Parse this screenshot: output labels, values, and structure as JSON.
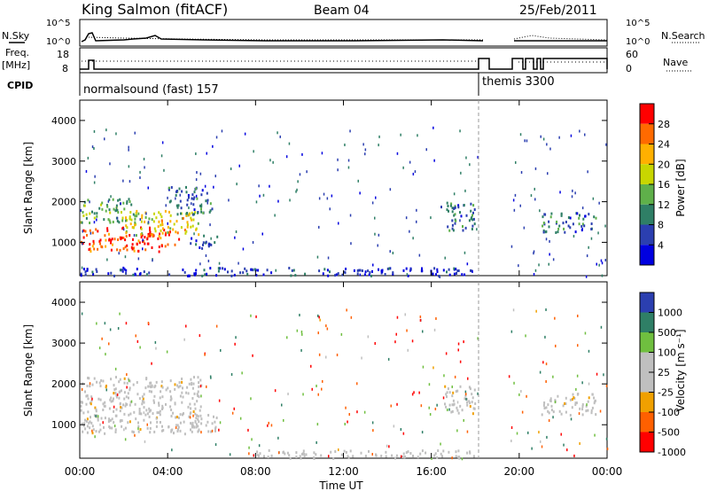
{
  "header": {
    "station": "King Salmon (fitACF)",
    "beam": "Beam 04",
    "date": "25/Feb/2011"
  },
  "status_panel": {
    "nsky_label": "N.Sky",
    "nsearch_label": "N.Search",
    "freq_label_line1": "Freq.",
    "freq_label_line2": "[MHz]",
    "nave_label": "Nave",
    "cpid_label": "CPID",
    "noise_ticks": [
      "10^5",
      "10^0"
    ],
    "freq_ticks": [
      "18",
      "8"
    ],
    "nave_ticks": [
      "60",
      "0"
    ],
    "cpid_segments": [
      {
        "name": "normalsound (fast) 157",
        "start_hour": 0,
        "end_hour": 18
      },
      {
        "name": "themis 3300",
        "start_hour": 18,
        "end_hour": 24
      }
    ]
  },
  "axes": {
    "x_ticks": [
      "00:00",
      "04:00",
      "08:00",
      "12:00",
      "16:00",
      "20:00",
      "00:00"
    ],
    "x_label": "Time UT",
    "y_label": "Slant Range [km]",
    "y_ticks": [
      "4000",
      "3000",
      "2000",
      "1000"
    ]
  },
  "colorbars": {
    "power": {
      "label": "Power [dB]",
      "ticks": [
        "28",
        "24",
        "20",
        "16",
        "12",
        "8",
        "4"
      ],
      "colors": [
        "#ff0000",
        "#ff6a00",
        "#ffb000",
        "#c8d600",
        "#5fb04a",
        "#2f7f66",
        "#2b3fb0",
        "#0000e0"
      ]
    },
    "velocity": {
      "label": "Velocity [m s⁻¹]",
      "ticks": [
        "1000",
        "500",
        "100",
        "25",
        "-25",
        "-100",
        "-500",
        "-1000"
      ],
      "colors": [
        "#2b3fb0",
        "#2f7f66",
        "#6fbf3f",
        "#bfbfbf",
        "#bfbfbf",
        "#f0a000",
        "#ff6000",
        "#ff0000"
      ]
    }
  },
  "chart_data": [
    {
      "type": "heatmap",
      "title": "Power",
      "xlabel": "Time UT",
      "ylabel": "Slant Range [km]",
      "xlim": [
        0,
        24
      ],
      "ylim": [
        180,
        4500
      ],
      "color_scale": [
        0,
        30
      ],
      "regions": [
        {
          "t0": 0.0,
          "t1": 4.5,
          "r0": 800,
          "r1": 1400,
          "value": 26
        },
        {
          "t0": 2.0,
          "t1": 5.5,
          "r0": 1200,
          "r1": 1800,
          "value": 18
        },
        {
          "t0": 0.0,
          "t1": 2.5,
          "r0": 1500,
          "r1": 2100,
          "value": 12
        },
        {
          "t0": 4.0,
          "t1": 6.0,
          "r0": 1700,
          "r1": 2400,
          "value": 8
        },
        {
          "t0": 5.0,
          "t1": 6.3,
          "r0": 850,
          "r1": 1200,
          "value": 6
        },
        {
          "t0": 16.3,
          "t1": 18.0,
          "r0": 1300,
          "r1": 2000,
          "value": 8
        },
        {
          "t0": 21.0,
          "t1": 23.5,
          "r0": 1250,
          "r1": 1750,
          "value": 8
        },
        {
          "t0": 0.0,
          "t1": 18.0,
          "r0": 200,
          "r1": 400,
          "value": 4
        }
      ]
    },
    {
      "type": "heatmap",
      "title": "Velocity",
      "xlabel": "Time UT",
      "ylabel": "Slant Range [km]",
      "xlim": [
        0,
        24
      ],
      "ylim": [
        180,
        4500
      ],
      "color_scale": [
        -1000,
        1000
      ],
      "regions": [
        {
          "t0": 0.0,
          "t1": 5.5,
          "r0": 800,
          "r1": 2200,
          "value": 0
        },
        {
          "t0": 5.0,
          "t1": 6.3,
          "r0": 850,
          "r1": 1300,
          "value": 50
        },
        {
          "t0": 16.5,
          "t1": 18.0,
          "r0": 1300,
          "r1": 2000,
          "value": 0
        },
        {
          "t0": 21.0,
          "t1": 23.5,
          "r0": 1250,
          "r1": 1800,
          "value": 0
        },
        {
          "t0": 8.0,
          "t1": 18.0,
          "r0": 200,
          "r1": 400,
          "value": 60
        }
      ]
    }
  ]
}
